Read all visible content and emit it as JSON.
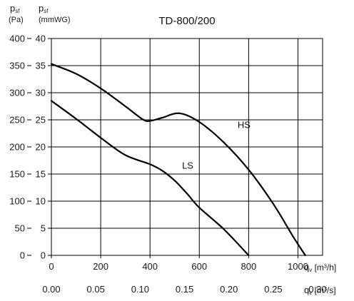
{
  "chart_data": {
    "type": "line",
    "title": "TD-800/200",
    "y_axis_left_outer": {
      "label_symbol": "p",
      "label_sub": "sf",
      "unit": "(Pa)",
      "range": [
        0,
        400
      ],
      "ticks": [
        "0",
        "50",
        "100",
        "150",
        "200",
        "250",
        "300",
        "350",
        "400"
      ]
    },
    "y_axis_left_inner": {
      "label_symbol": "p",
      "label_sub": "sf",
      "unit": "(mmWG)",
      "range": [
        0,
        40
      ],
      "ticks": [
        "0",
        "5",
        "10",
        "15",
        "20",
        "25",
        "30",
        "35",
        "40"
      ]
    },
    "x_axis_primary": {
      "label_symbol": "q",
      "label_sub": "v",
      "unit": "[m³/h]",
      "range": [
        0,
        1100
      ],
      "ticks": [
        "0",
        "200",
        "400",
        "600",
        "800",
        "1000"
      ]
    },
    "x_axis_secondary": {
      "label_symbol": "q",
      "label_sub": "v",
      "unit": "[m³/s]",
      "ticks": [
        "0.00",
        "0.05",
        "0.10",
        "0.15",
        "0.20",
        "0.25",
        "0.30"
      ]
    },
    "grid": true,
    "series": [
      {
        "name": "HS",
        "x": [
          0,
          100,
          200,
          300,
          370,
          400,
          450,
          520,
          600,
          700,
          800,
          900,
          980,
          1030
        ],
        "y": [
          35.3,
          33.5,
          30.8,
          27.5,
          25.1,
          24.8,
          25.4,
          26.2,
          24.6,
          20.8,
          15.8,
          9.5,
          3.5,
          0
        ]
      },
      {
        "name": "LS",
        "x": [
          0,
          100,
          200,
          300,
          400,
          450,
          500,
          550,
          600,
          700,
          800
        ],
        "y": [
          28.5,
          25.2,
          21.7,
          18.5,
          16.8,
          15.6,
          13.8,
          11.4,
          8.8,
          4.8,
          0
        ]
      }
    ],
    "annotations": [
      "HS",
      "LS"
    ]
  }
}
